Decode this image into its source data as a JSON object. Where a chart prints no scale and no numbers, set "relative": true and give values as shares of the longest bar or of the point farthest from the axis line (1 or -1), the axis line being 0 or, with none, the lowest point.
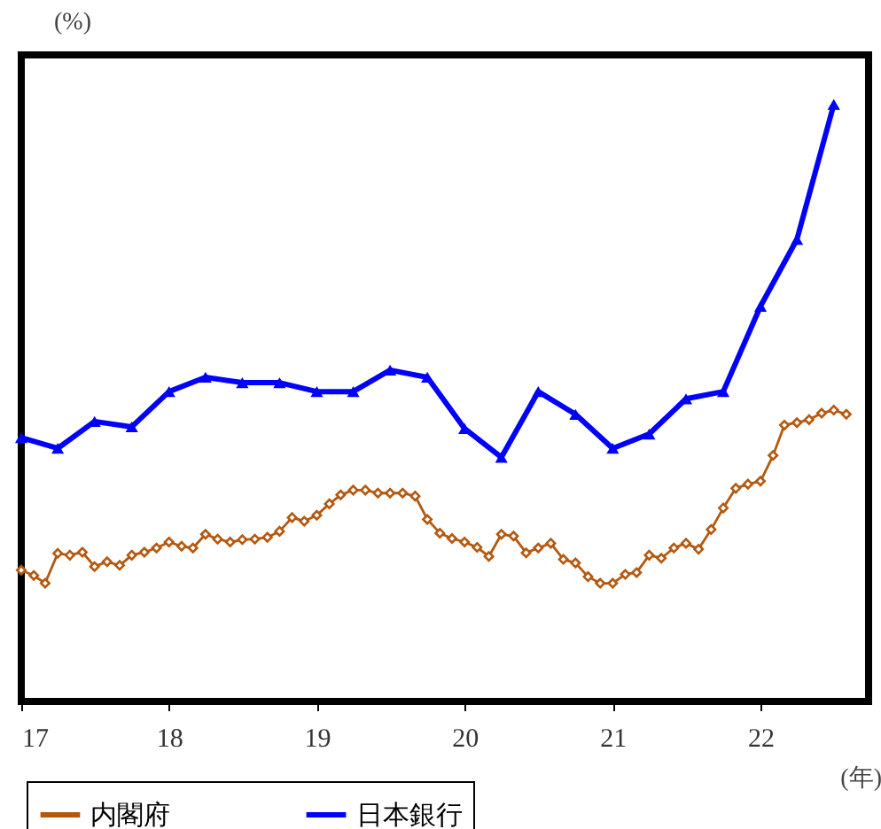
{
  "chart_data": {
    "type": "line",
    "relative": true,
    "ylabel": "(%)",
    "xlabel": "(年)",
    "xlim": [
      "2017-01",
      "2022-09-25"
    ],
    "xticks": [
      {
        "value": "2017-01",
        "label": "17"
      },
      {
        "value": "2018-01",
        "label": "18"
      },
      {
        "value": "2019-01",
        "label": "19"
      },
      {
        "value": "2020-01",
        "label": "20"
      },
      {
        "value": "2021-01",
        "label": "21"
      },
      {
        "value": "2022-01",
        "label": "22"
      }
    ],
    "legend": "bottom",
    "series": [
      {
        "name": "内閣府",
        "color": "#b4580f",
        "marker": "diamond",
        "x": [
          "2017-01",
          "2017-02",
          "2017-03",
          "2017-04",
          "2017-05",
          "2017-06",
          "2017-07",
          "2017-08",
          "2017-09",
          "2017-10",
          "2017-11",
          "2017-12",
          "2018-01",
          "2018-02",
          "2018-03",
          "2018-04",
          "2018-05",
          "2018-06",
          "2018-07",
          "2018-08",
          "2018-09",
          "2018-10",
          "2018-11",
          "2018-12",
          "2019-01",
          "2019-02",
          "2019-03",
          "2019-04",
          "2019-05",
          "2019-06",
          "2019-07",
          "2019-08",
          "2019-09",
          "2019-10",
          "2019-11",
          "2019-12",
          "2020-01",
          "2020-02",
          "2020-03",
          "2020-04",
          "2020-05",
          "2020-06",
          "2020-07",
          "2020-08",
          "2020-09",
          "2020-10",
          "2020-11",
          "2020-12",
          "2021-01",
          "2021-02",
          "2021-03",
          "2021-04",
          "2021-05",
          "2021-06",
          "2021-07",
          "2021-08",
          "2021-09",
          "2021-10",
          "2021-11",
          "2021-12",
          "2022-01",
          "2022-02",
          "2022-03",
          "2022-04",
          "2022-05",
          "2022-06",
          "2022-07",
          "2022-08"
        ],
        "values": [
          0.22,
          0.211,
          0.198,
          0.248,
          0.245,
          0.25,
          0.226,
          0.234,
          0.228,
          0.245,
          0.25,
          0.257,
          0.267,
          0.26,
          0.257,
          0.28,
          0.272,
          0.267,
          0.271,
          0.272,
          0.275,
          0.285,
          0.308,
          0.302,
          0.312,
          0.331,
          0.346,
          0.354,
          0.354,
          0.349,
          0.349,
          0.349,
          0.344,
          0.305,
          0.282,
          0.273,
          0.267,
          0.258,
          0.243,
          0.28,
          0.277,
          0.249,
          0.257,
          0.265,
          0.238,
          0.232,
          0.209,
          0.198,
          0.198,
          0.213,
          0.216,
          0.245,
          0.24,
          0.257,
          0.265,
          0.255,
          0.288,
          0.324,
          0.357,
          0.364,
          0.369,
          0.412,
          0.463,
          0.467,
          0.472,
          0.483,
          0.488,
          0.481
        ]
      },
      {
        "name": "日本銀行",
        "color": "#0000ff",
        "marker": "triangle",
        "x": [
          "2017-01",
          "2017-04",
          "2017-07",
          "2017-10",
          "2018-01",
          "2018-04",
          "2018-07",
          "2018-10",
          "2019-01",
          "2019-04",
          "2019-07",
          "2019-10",
          "2020-01",
          "2020-04",
          "2020-07",
          "2020-10",
          "2021-01",
          "2021-04",
          "2021-07",
          "2021-10",
          "2022-01",
          "2022-04",
          "2022-07"
        ],
        "values": [
          0.442,
          0.424,
          0.469,
          0.46,
          0.519,
          0.543,
          0.534,
          0.534,
          0.519,
          0.519,
          0.555,
          0.543,
          0.457,
          0.409,
          0.519,
          0.481,
          0.424,
          0.448,
          0.507,
          0.519,
          0.662,
          0.774,
          1.0
        ]
      }
    ]
  }
}
